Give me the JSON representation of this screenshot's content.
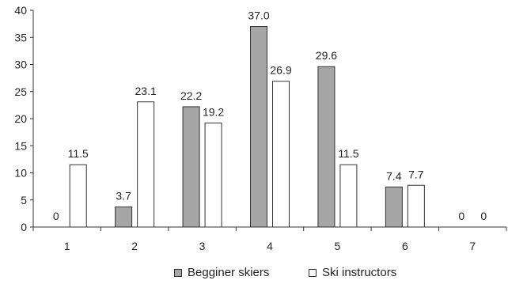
{
  "chart_data": {
    "type": "bar",
    "categories": [
      "1",
      "2",
      "3",
      "4",
      "5",
      "6",
      "7"
    ],
    "series": [
      {
        "name": "Begginer skiers",
        "values": [
          0,
          3.7,
          22.2,
          37.0,
          29.6,
          7.4,
          0
        ],
        "labels": [
          "0",
          "3.7",
          "22.2",
          "37.0",
          "29.6",
          "7.4",
          "0"
        ],
        "color": "#a6a6a6"
      },
      {
        "name": "Ski instructors",
        "values": [
          11.5,
          23.1,
          19.2,
          26.9,
          11.5,
          7.7,
          0
        ],
        "labels": [
          "11.5",
          "23.1",
          "19.2",
          "26.9",
          "11.5",
          "7.7",
          "0"
        ],
        "color": "#ffffff"
      }
    ],
    "yticks": [
      "0",
      "5",
      "10",
      "15",
      "20",
      "25",
      "30",
      "35",
      "40"
    ],
    "ylim": [
      0,
      40
    ],
    "grid": false,
    "legend_position": "bottom"
  }
}
